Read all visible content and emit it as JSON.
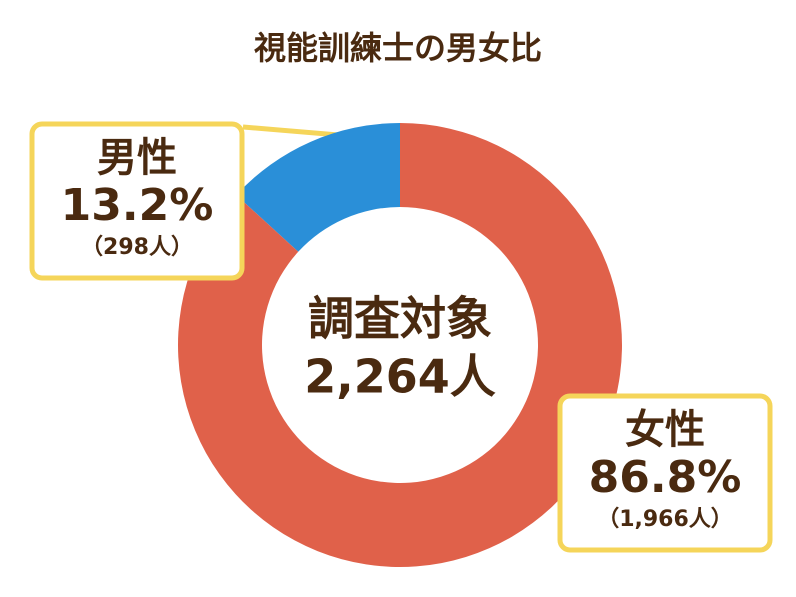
{
  "chart_data": {
    "type": "pie",
    "title": "視能訓練士の男女比",
    "categories": [
      "男性",
      "女性"
    ],
    "values": [
      13.2,
      86.8
    ],
    "value_labels": [
      "13.2%",
      "86.8%"
    ],
    "counts": [
      298,
      1966
    ],
    "count_labels": [
      "（298人）",
      "（1,966人）"
    ],
    "colors": [
      "#2a8fd8",
      "#e0614a"
    ],
    "center_label": "調査対象",
    "total": 2264,
    "total_label": "2,264人"
  }
}
